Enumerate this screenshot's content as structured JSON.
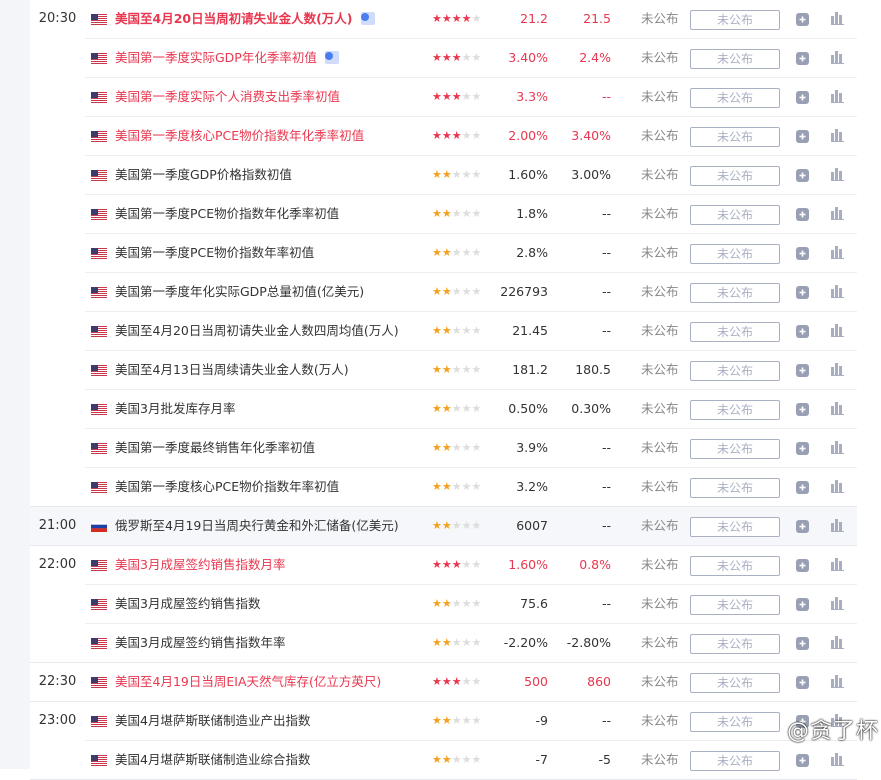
{
  "colors": {
    "important": "#e8374f",
    "star_red": "#e8374f",
    "star_yellow": "#f4a020",
    "muted": "#aab0c4"
  },
  "groups": [
    {
      "time": "20:30",
      "rows": [
        {
          "country": "US",
          "name": "美国至4月20日当周初请失业金人数(万人)",
          "stars": 4,
          "prev": "21.2",
          "forecast": "21.5",
          "actual": "未公布",
          "input": "未公布",
          "important": true,
          "bold": true,
          "video": true
        },
        {
          "country": "US",
          "name": "美国第一季度实际GDP年化季率初值",
          "stars": 3,
          "prev": "3.40%",
          "forecast": "2.4%",
          "actual": "未公布",
          "input": "未公布",
          "important": true,
          "video": true
        },
        {
          "country": "US",
          "name": "美国第一季度实际个人消费支出季率初值",
          "stars": 3,
          "prev": "3.3%",
          "forecast": "--",
          "actual": "未公布",
          "input": "未公布",
          "important": true
        },
        {
          "country": "US",
          "name": "美国第一季度核心PCE物价指数年化季率初值",
          "stars": 3,
          "prev": "2.00%",
          "forecast": "3.40%",
          "actual": "未公布",
          "input": "未公布",
          "important": true
        },
        {
          "country": "US",
          "name": "美国第一季度GDP价格指数初值",
          "stars": 2,
          "prev": "1.60%",
          "forecast": "3.00%",
          "actual": "未公布",
          "input": "未公布"
        },
        {
          "country": "US",
          "name": "美国第一季度PCE物价指数年化季率初值",
          "stars": 2,
          "prev": "1.8%",
          "forecast": "--",
          "actual": "未公布",
          "input": "未公布"
        },
        {
          "country": "US",
          "name": "美国第一季度PCE物价指数年率初值",
          "stars": 2,
          "prev": "2.8%",
          "forecast": "--",
          "actual": "未公布",
          "input": "未公布"
        },
        {
          "country": "US",
          "name": "美国第一季度年化实际GDP总量初值(亿美元)",
          "stars": 2,
          "prev": "226793",
          "forecast": "--",
          "actual": "未公布",
          "input": "未公布"
        },
        {
          "country": "US",
          "name": "美国至4月20日当周初请失业金人数四周均值(万人)",
          "stars": 2,
          "prev": "21.45",
          "forecast": "--",
          "actual": "未公布",
          "input": "未公布"
        },
        {
          "country": "US",
          "name": "美国至4月13日当周续请失业金人数(万人)",
          "stars": 2,
          "prev": "181.2",
          "forecast": "180.5",
          "actual": "未公布",
          "input": "未公布"
        },
        {
          "country": "US",
          "name": "美国3月批发库存月率",
          "stars": 2,
          "prev": "0.50%",
          "forecast": "0.30%",
          "actual": "未公布",
          "input": "未公布"
        },
        {
          "country": "US",
          "name": "美国第一季度最终销售年化季率初值",
          "stars": 2,
          "prev": "3.9%",
          "forecast": "--",
          "actual": "未公布",
          "input": "未公布"
        },
        {
          "country": "US",
          "name": "美国第一季度核心PCE物价指数年率初值",
          "stars": 2,
          "prev": "3.2%",
          "forecast": "--",
          "actual": "未公布",
          "input": "未公布"
        }
      ]
    },
    {
      "time": "21:00",
      "gray": true,
      "rows": [
        {
          "country": "RU",
          "name": "俄罗斯至4月19日当周央行黄金和外汇储备(亿美元)",
          "stars": 2,
          "prev": "6007",
          "forecast": "--",
          "actual": "未公布",
          "input": "未公布"
        }
      ]
    },
    {
      "time": "22:00",
      "rows": [
        {
          "country": "US",
          "name": "美国3月成屋签约销售指数月率",
          "stars": 3,
          "prev": "1.60%",
          "forecast": "0.8%",
          "actual": "未公布",
          "input": "未公布",
          "important": true
        },
        {
          "country": "US",
          "name": "美国3月成屋签约销售指数",
          "stars": 2,
          "prev": "75.6",
          "forecast": "--",
          "actual": "未公布",
          "input": "未公布"
        },
        {
          "country": "US",
          "name": "美国3月成屋签约销售指数年率",
          "stars": 2,
          "prev": "-2.20%",
          "forecast": "-2.80%",
          "actual": "未公布",
          "input": "未公布"
        }
      ]
    },
    {
      "time": "22:30",
      "rows": [
        {
          "country": "US",
          "name": "美国至4月19日当周EIA天然气库存(亿立方英尺)",
          "stars": 3,
          "prev": "500",
          "forecast": "860",
          "actual": "未公布",
          "input": "未公布",
          "important": true
        }
      ]
    },
    {
      "time": "23:00",
      "rows": [
        {
          "country": "US",
          "name": "美国4月堪萨斯联储制造业产出指数",
          "stars": 2,
          "prev": "-9",
          "forecast": "--",
          "actual": "未公布",
          "input": "未公布"
        },
        {
          "country": "US",
          "name": "美国4月堪萨斯联储制造业综合指数",
          "stars": 2,
          "prev": "-7",
          "forecast": "-5",
          "actual": "未公布",
          "input": "未公布"
        }
      ]
    }
  ],
  "watermark": "@贪了杯"
}
